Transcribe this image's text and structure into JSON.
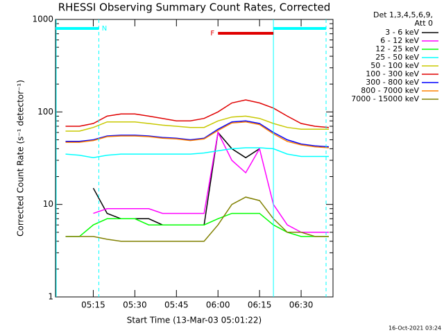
{
  "chart_data": {
    "type": "line",
    "title": "RHESSI Observing Summary Count Rates, Corrected",
    "xlabel": "Start Time (13-Mar-03 05:01:22)",
    "ylabel": "Corrected Count Rate (s⁻¹ detector⁻¹)",
    "legend_title": [
      "Det 1,3,4,5,6,9,",
      "Att 0"
    ],
    "footer": "16-Oct-2021 03:24",
    "log_y": true,
    "xlim": [
      "05:01:22",
      "06:41:30"
    ],
    "xticks": [
      "05:15",
      "05:30",
      "05:45",
      "06:00",
      "06:15",
      "06:30"
    ],
    "ylim": [
      1,
      1000
    ],
    "yticks": [
      1,
      10,
      100,
      1000
    ],
    "x": [
      "05:05",
      "05:10",
      "05:15",
      "05:20",
      "05:25",
      "05:30",
      "05:35",
      "05:40",
      "05:45",
      "05:50",
      "05:55",
      "06:00",
      "06:05",
      "06:10",
      "06:15",
      "06:20",
      "06:25",
      "06:30",
      "06:35",
      "06:40"
    ],
    "series": [
      {
        "name": "3 - 6 keV",
        "color": "#000000",
        "values": [
          null,
          null,
          15,
          8,
          7,
          7,
          7,
          6,
          6,
          6,
          6,
          60,
          40,
          32,
          40,
          null,
          null,
          null,
          null,
          null
        ]
      },
      {
        "name": "6 - 12 keV",
        "color": "#ff00ff",
        "values": [
          null,
          null,
          8,
          9,
          9,
          9,
          9,
          8,
          8,
          8,
          8,
          60,
          30,
          22,
          40,
          10,
          6,
          5,
          5,
          5
        ]
      },
      {
        "name": "12 - 25 keV",
        "color": "#00ff00",
        "values": [
          4.5,
          4.5,
          6,
          7,
          7,
          7,
          6,
          6,
          6,
          6,
          6,
          7,
          8,
          8,
          8,
          6,
          5,
          4.5,
          4.5,
          4.5
        ]
      },
      {
        "name": "25 - 50 keV",
        "color": "#00ffff",
        "values": [
          35,
          34,
          32,
          34,
          35,
          35,
          35,
          35,
          35,
          35,
          36,
          38,
          40,
          41,
          41,
          40,
          35,
          33,
          33,
          33
        ]
      },
      {
        "name": "50 - 100 keV",
        "color": "#c8c800",
        "values": [
          62,
          62,
          68,
          78,
          78,
          78,
          75,
          72,
          70,
          68,
          68,
          80,
          88,
          90,
          85,
          75,
          68,
          65,
          65,
          65
        ]
      },
      {
        "name": "100 - 300 keV",
        "color": "#e00000",
        "values": [
          70,
          70,
          75,
          90,
          95,
          95,
          90,
          85,
          80,
          80,
          85,
          100,
          125,
          135,
          125,
          110,
          90,
          75,
          70,
          68
        ]
      },
      {
        "name": "300 - 800 keV",
        "color": "#0000ff",
        "values": [
          48,
          48,
          50,
          55,
          56,
          56,
          55,
          53,
          52,
          50,
          52,
          65,
          78,
          80,
          75,
          60,
          50,
          45,
          43,
          42
        ]
      },
      {
        "name": "800 - 7000 keV",
        "color": "#ff8000",
        "values": [
          47,
          47,
          49,
          54,
          55,
          55,
          54,
          52,
          51,
          49,
          51,
          63,
          76,
          78,
          73,
          58,
          48,
          44,
          42,
          41
        ]
      },
      {
        "name": "7000 - 15000 keV",
        "color": "#808000",
        "values": [
          4.5,
          4.5,
          4.5,
          4.2,
          4,
          4,
          4,
          4,
          4,
          4,
          4,
          6,
          10,
          12,
          11,
          7,
          5,
          5,
          4.5,
          4.5
        ]
      }
    ],
    "state_bars": [
      {
        "label": "N",
        "color": "#00ffff",
        "segments": [
          [
            "05:01:22",
            "05:17"
          ],
          [
            "06:20",
            "06:39"
          ]
        ]
      },
      {
        "label": "F",
        "color": "#e00000",
        "segments": [
          [
            "06:00",
            "06:20"
          ]
        ]
      }
    ],
    "solid_vlines": [
      "06:20"
    ],
    "dashed_vlines": [
      "05:17",
      "06:39"
    ],
    "vline_color": "#00ffff"
  }
}
